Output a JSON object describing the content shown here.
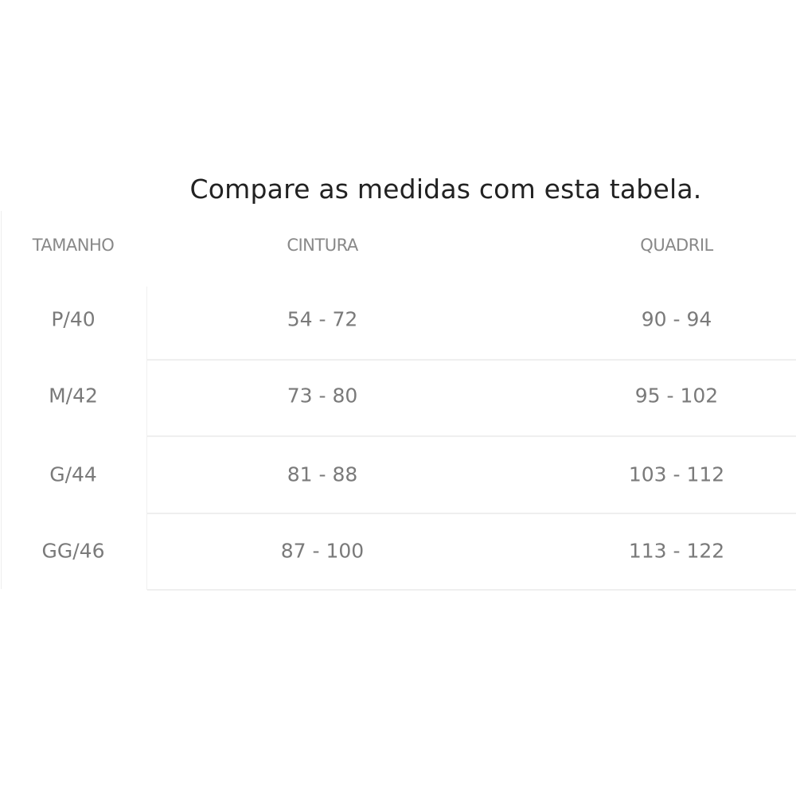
{
  "title": "Compare as medidas com esta tabela.",
  "table": {
    "headers": [
      "TAMANHO",
      "CINTURA",
      "QUADRIL"
    ],
    "rows": [
      [
        "P/40",
        "54 - 72",
        "90 - 94"
      ],
      [
        "M/42",
        "73 - 80",
        "95 - 102"
      ],
      [
        "G/44",
        "81 - 88",
        "103 - 112"
      ],
      [
        "GG/46",
        "87 - 100",
        "113 - 122"
      ]
    ]
  }
}
